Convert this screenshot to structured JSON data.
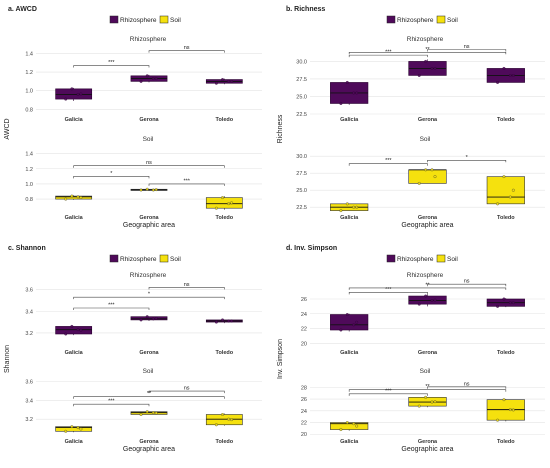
{
  "colors": {
    "rhizosphere": "#4f0a5a",
    "soil": "#f5e10e",
    "sig_line": "#444444",
    "grid": "#e3e3e3"
  },
  "xlabel": "Geographic area",
  "chart_data": [
    {
      "type": "box",
      "title": "a. AWCD",
      "ylabel": "AWCD",
      "categories": [
        "Galicia",
        "Gerona",
        "Toledo"
      ],
      "legend": {
        "placement": "top-center",
        "items": [
          "Rhizosphere",
          "Soil"
        ]
      },
      "facets": [
        {
          "name": "Rhizosphere",
          "series": "rhizosphere",
          "ylim": [
            0.75,
            1.48
          ],
          "yticks": [
            0.8,
            1.0,
            1.2,
            1.4
          ],
          "boxes": [
            {
              "category": "Galicia",
              "q1": 0.91,
              "median": 0.96,
              "q3": 1.02,
              "min": 0.89,
              "max": 1.03
            },
            {
              "category": "Gerona",
              "q1": 1.1,
              "median": 1.13,
              "q3": 1.16,
              "min": 1.09,
              "max": 1.17
            },
            {
              "category": "Toledo",
              "q1": 1.08,
              "median": 1.1,
              "q3": 1.12,
              "min": 1.07,
              "max": 1.13
            }
          ],
          "brackets": [
            {
              "from": "Galicia",
              "to": "Gerona",
              "label": "***",
              "y": 1.27
            },
            {
              "from": "Gerona",
              "to": "Toledo",
              "label": "ns",
              "y": 1.43
            }
          ]
        },
        {
          "name": "Soil",
          "series": "soil",
          "ylim": [
            0.63,
            1.5
          ],
          "yticks": [
            0.8,
            1.0,
            1.2,
            1.4
          ],
          "boxes": [
            {
              "category": "Galicia",
              "q1": 0.8,
              "median": 0.83,
              "q3": 0.84,
              "min": 0.79,
              "max": 0.85
            },
            {
              "category": "Gerona",
              "q1": 0.92,
              "median": 0.92,
              "q3": 0.93,
              "min": 0.91,
              "max": 0.93
            },
            {
              "category": "Toledo",
              "q1": 0.68,
              "median": 0.74,
              "q3": 0.82,
              "min": 0.66,
              "max": 0.84
            }
          ],
          "brackets": [
            {
              "from": "Galicia",
              "to": "Gerona",
              "label": "*",
              "y": 1.1
            },
            {
              "from": "Gerona",
              "to": "Toledo",
              "label": "***",
              "y": 1.0
            },
            {
              "from": "Galicia",
              "to": "Toledo",
              "label": "ns",
              "y": 1.24
            }
          ]
        }
      ]
    },
    {
      "type": "box",
      "title": "b. Richness",
      "ylabel": "Richness",
      "categories": [
        "Galicia",
        "Gerona",
        "Toledo"
      ],
      "legend": {
        "placement": "top-center",
        "items": [
          "Rhizosphere",
          "Soil"
        ]
      },
      "facets": [
        {
          "name": "Rhizosphere",
          "series": "rhizosphere",
          "ylim": [
            22.5,
            32.2
          ],
          "yticks": [
            22.5,
            25.0,
            27.5,
            30.0
          ],
          "boxes": [
            {
              "category": "Galicia",
              "q1": 24.0,
              "median": 25.5,
              "q3": 27.0,
              "min": 23.8,
              "max": 27.0
            },
            {
              "category": "Gerona",
              "q1": 28.0,
              "median": 29.0,
              "q3": 30.0,
              "min": 28.0,
              "max": 30.3
            },
            {
              "category": "Toledo",
              "q1": 27.0,
              "median": 28.0,
              "q3": 29.0,
              "min": 27.0,
              "max": 29.0
            }
          ],
          "brackets": [
            {
              "from": "Galicia",
              "to": "Gerona",
              "label": "***",
              "y": 30.9
            },
            {
              "from": "Gerona",
              "to": "Toledo",
              "label": "ns",
              "y": 31.7
            },
            {
              "from": "Galicia",
              "to": "Toledo",
              "label": "**",
              "y": 31.3
            }
          ]
        },
        {
          "name": "Soil",
          "series": "soil",
          "ylim": [
            21.8,
            31.5
          ],
          "yticks": [
            22.5,
            25.0,
            27.5,
            30.0
          ],
          "boxes": [
            {
              "category": "Galicia",
              "q1": 22.0,
              "median": 22.5,
              "q3": 23.0,
              "min": 22.0,
              "max": 23.0
            },
            {
              "category": "Gerona",
              "q1": 26.0,
              "median": 28.0,
              "q3": 28.0,
              "min": 26.0,
              "max": 28.0
            },
            {
              "category": "Toledo",
              "q1": 23.0,
              "median": 24.0,
              "q3": 27.0,
              "min": 23.0,
              "max": 27.0
            }
          ],
          "brackets": [
            {
              "from": "Galicia",
              "to": "Gerona",
              "label": "***",
              "y": 28.9
            },
            {
              "from": "Gerona",
              "to": "Toledo",
              "label": "*",
              "y": 29.4
            }
          ]
        }
      ]
    },
    {
      "type": "box",
      "title": "c. Shannon",
      "ylabel": "Shannon",
      "categories": [
        "Galicia",
        "Gerona",
        "Toledo"
      ],
      "legend": {
        "placement": "top-center",
        "items": [
          "Rhizosphere",
          "Soil"
        ]
      },
      "facets": [
        {
          "name": "Rhizosphere",
          "series": "rhizosphere",
          "ylim": [
            3.07,
            3.67
          ],
          "yticks": [
            3.2,
            3.4,
            3.6
          ],
          "boxes": [
            {
              "category": "Galicia",
              "q1": 3.19,
              "median": 3.23,
              "q3": 3.26,
              "min": 3.18,
              "max": 3.26
            },
            {
              "category": "Gerona",
              "q1": 3.32,
              "median": 3.33,
              "q3": 3.35,
              "min": 3.31,
              "max": 3.35
            },
            {
              "category": "Toledo",
              "q1": 3.3,
              "median": 3.31,
              "q3": 3.32,
              "min": 3.29,
              "max": 3.32
            }
          ],
          "brackets": [
            {
              "from": "Galicia",
              "to": "Gerona",
              "label": "***",
              "y": 3.43
            },
            {
              "from": "Gerona",
              "to": "Toledo",
              "label": "ns",
              "y": 3.62
            },
            {
              "from": "Galicia",
              "to": "Toledo",
              "label": "*",
              "y": 3.53
            }
          ]
        },
        {
          "name": "Soil",
          "series": "soil",
          "ylim": [
            3.02,
            3.64
          ],
          "yticks": [
            3.2,
            3.4,
            3.6
          ],
          "boxes": [
            {
              "category": "Galicia",
              "q1": 3.07,
              "median": 3.11,
              "q3": 3.12,
              "min": 3.06,
              "max": 3.12
            },
            {
              "category": "Gerona",
              "q1": 3.25,
              "median": 3.27,
              "q3": 3.28,
              "min": 3.25,
              "max": 3.28
            },
            {
              "category": "Toledo",
              "q1": 3.14,
              "median": 3.2,
              "q3": 3.25,
              "min": 3.13,
              "max": 3.26
            }
          ],
          "brackets": [
            {
              "from": "Galicia",
              "to": "Gerona",
              "label": "***",
              "y": 3.36
            },
            {
              "from": "Gerona",
              "to": "Toledo",
              "label": "ns",
              "y": 3.5
            },
            {
              "from": "Galicia",
              "to": "Toledo",
              "label": "**",
              "y": 3.44
            }
          ]
        }
      ]
    },
    {
      "type": "box",
      "title": "d. Inv. Simpson",
      "ylabel": "Inv. Simpson",
      "categories": [
        "Galicia",
        "Gerona",
        "Toledo"
      ],
      "legend": {
        "placement": "top-center",
        "items": [
          "Rhizosphere",
          "Soil"
        ]
      },
      "facets": [
        {
          "name": "Rhizosphere",
          "series": "rhizosphere",
          "ylim": [
            19.5,
            28.3
          ],
          "yticks": [
            20,
            22,
            24,
            26
          ],
          "boxes": [
            {
              "category": "Galicia",
              "q1": 21.8,
              "median": 22.5,
              "q3": 23.9,
              "min": 21.6,
              "max": 24.0
            },
            {
              "category": "Gerona",
              "q1": 25.3,
              "median": 25.8,
              "q3": 26.4,
              "min": 25.0,
              "max": 26.6
            },
            {
              "category": "Toledo",
              "q1": 25.0,
              "median": 25.5,
              "q3": 26.0,
              "min": 24.9,
              "max": 26.1
            }
          ],
          "brackets": [
            {
              "from": "Galicia",
              "to": "Gerona",
              "label": "***",
              "y": 26.9
            },
            {
              "from": "Gerona",
              "to": "Toledo",
              "label": "ns",
              "y": 28.0
            },
            {
              "from": "Galicia",
              "to": "Toledo",
              "label": "**",
              "y": 27.5
            }
          ]
        },
        {
          "name": "Soil",
          "series": "soil",
          "ylim": [
            19.7,
            29.6
          ],
          "yticks": [
            20,
            22,
            24,
            26,
            28
          ],
          "boxes": [
            {
              "category": "Galicia",
              "q1": 20.8,
              "median": 21.8,
              "q3": 22.0,
              "min": 20.6,
              "max": 22.0
            },
            {
              "category": "Gerona",
              "q1": 24.8,
              "median": 25.5,
              "q3": 26.3,
              "min": 24.6,
              "max": 26.3
            },
            {
              "category": "Toledo",
              "q1": 22.4,
              "median": 24.2,
              "q3": 25.9,
              "min": 22.2,
              "max": 26.0
            }
          ],
          "brackets": [
            {
              "from": "Galicia",
              "to": "Gerona",
              "label": "***",
              "y": 26.9
            },
            {
              "from": "Gerona",
              "to": "Toledo",
              "label": "ns",
              "y": 28.1
            },
            {
              "from": "Galicia",
              "to": "Toledo",
              "label": "**",
              "y": 27.6
            }
          ]
        }
      ]
    }
  ]
}
